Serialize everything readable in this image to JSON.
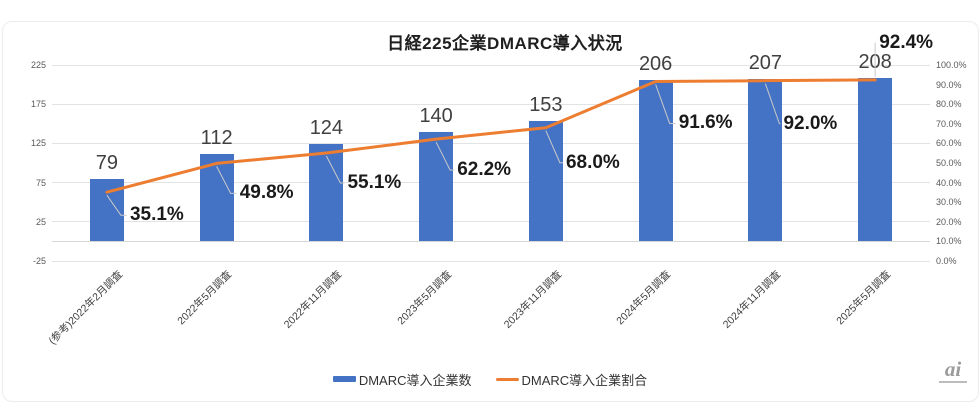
{
  "title": "日経225企業DMARC導入状況",
  "logo": {
    "text": "ai"
  },
  "legend": [
    {
      "label": "DMARC導入企業数",
      "type": "bar",
      "color": "#4472C4"
    },
    {
      "label": "DMARC導入企業割合",
      "type": "line",
      "color": "#ED7D31"
    }
  ],
  "colors": {
    "bar": "#4472C4",
    "line": "#ED7D31",
    "gridline": "#e3e3e3",
    "tick_text": "#595959",
    "bar_label_text": "#404040",
    "pct_label_text": "#1a1a1a"
  },
  "chart_data": {
    "type": "bar",
    "subtype": "combo-bar-line",
    "title": "日経225企業DMARC導入状況",
    "categories": [
      "(参考)2022年2月調査",
      "2022年5月調査",
      "2022年11月調査",
      "2023年5月調査",
      "2023年11月調査",
      "2024年5月調査",
      "2024年11月調査",
      "2025年5月調査"
    ],
    "series": [
      {
        "name": "DMARC導入企業数",
        "type": "bar",
        "axis": "left",
        "color": "#4472C4",
        "values": [
          79,
          112,
          124,
          140,
          153,
          206,
          207,
          208
        ],
        "data_labels": [
          "79",
          "112",
          "124",
          "140",
          "153",
          "206",
          "207",
          "208"
        ]
      },
      {
        "name": "DMARC導入企業割合",
        "type": "line",
        "axis": "right",
        "color": "#ED7D31",
        "values_percent": [
          35.1,
          49.8,
          55.1,
          62.2,
          68.0,
          91.6,
          92.0,
          92.4
        ],
        "data_labels": [
          "35.1%",
          "49.8%",
          "55.1%",
          "62.2%",
          "68.0%",
          "91.6%",
          "92.0%",
          "92.4%"
        ]
      }
    ],
    "left_axis": {
      "min": -25,
      "max": 225,
      "step": 50,
      "tick_labels": [
        "225",
        "175",
        "125",
        "75",
        "25",
        "-25"
      ]
    },
    "right_axis": {
      "min": 0,
      "max": 100,
      "step": 10,
      "tick_labels": [
        "100.0%",
        "90.0%",
        "80.0%",
        "70.0%",
        "60.0%",
        "50.0%",
        "40.0%",
        "30.0%",
        "20.0%",
        "10.0%",
        "0.0%"
      ],
      "note": "right axis 0% aligns with left axis -25; 100% aligns with left 225"
    },
    "grid": "horizontal, every 20% (every 50 units)",
    "legend_position": "bottom"
  }
}
